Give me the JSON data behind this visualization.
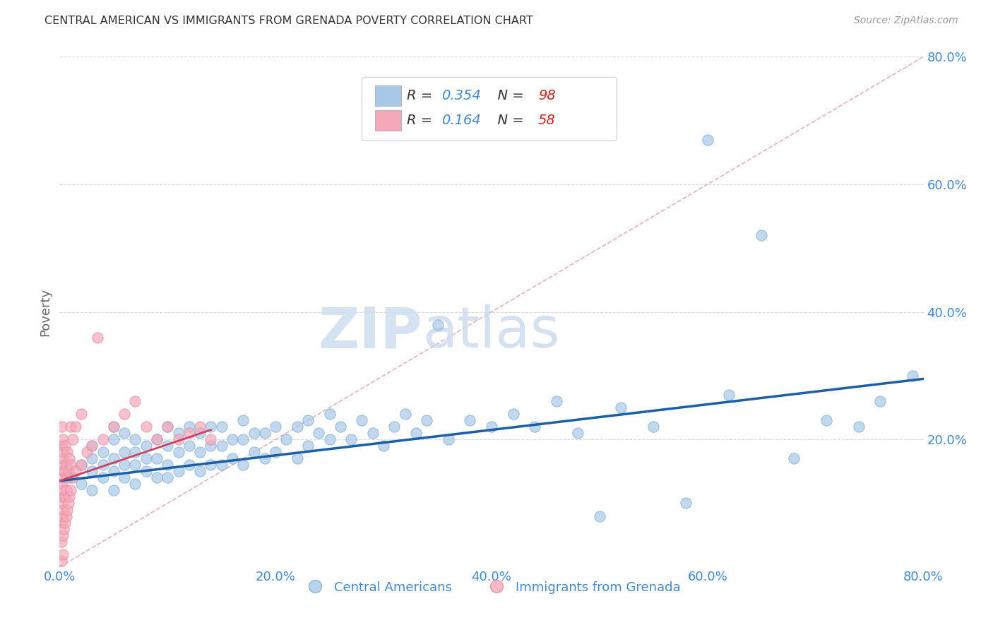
{
  "title": "CENTRAL AMERICAN VS IMMIGRANTS FROM GRENADA POVERTY CORRELATION CHART",
  "source": "Source: ZipAtlas.com",
  "ylabel": "Poverty",
  "xlim": [
    0.0,
    0.8
  ],
  "ylim": [
    0.0,
    0.8
  ],
  "ytick_values": [
    0.2,
    0.4,
    0.6,
    0.8
  ],
  "xtick_values": [
    0.0,
    0.2,
    0.4,
    0.6,
    0.8
  ],
  "legend1_label": "Central Americans",
  "legend2_label": "Immigrants from Grenada",
  "r1": 0.354,
  "n1": 98,
  "r2": 0.164,
  "n2": 58,
  "blue_color": "#a8c8e8",
  "pink_color": "#f4a8ba",
  "blue_scatter_edge": "#7aabcf",
  "pink_scatter_edge": "#e888a0",
  "blue_line_color": "#1a5fa8",
  "pink_line_color": "#d04060",
  "diagonal_color": "#e8b0b8",
  "grid_color": "#d8d8e0",
  "axis_label_color": "#4488cc",
  "n_color": "#cc2222",
  "watermark_color": "#dce8f4",
  "blue_line_x0": 0.0,
  "blue_line_y0": 0.135,
  "blue_line_x1": 0.8,
  "blue_line_y1": 0.295,
  "pink_line_x0": 0.0,
  "pink_line_y0": 0.135,
  "pink_line_x1": 0.14,
  "pink_line_y1": 0.215,
  "blue_scatter_x": [
    0.01,
    0.02,
    0.02,
    0.03,
    0.03,
    0.03,
    0.03,
    0.04,
    0.04,
    0.04,
    0.05,
    0.05,
    0.05,
    0.05,
    0.05,
    0.06,
    0.06,
    0.06,
    0.06,
    0.07,
    0.07,
    0.07,
    0.07,
    0.08,
    0.08,
    0.08,
    0.09,
    0.09,
    0.09,
    0.1,
    0.1,
    0.1,
    0.1,
    0.11,
    0.11,
    0.11,
    0.12,
    0.12,
    0.12,
    0.13,
    0.13,
    0.13,
    0.14,
    0.14,
    0.14,
    0.15,
    0.15,
    0.15,
    0.16,
    0.16,
    0.17,
    0.17,
    0.17,
    0.18,
    0.18,
    0.19,
    0.19,
    0.2,
    0.2,
    0.21,
    0.22,
    0.22,
    0.23,
    0.23,
    0.24,
    0.25,
    0.25,
    0.26,
    0.27,
    0.28,
    0.29,
    0.3,
    0.31,
    0.32,
    0.33,
    0.34,
    0.35,
    0.36,
    0.38,
    0.4,
    0.42,
    0.44,
    0.46,
    0.48,
    0.5,
    0.52,
    0.55,
    0.58,
    0.6,
    0.62,
    0.65,
    0.68,
    0.71,
    0.74,
    0.76,
    0.79
  ],
  "blue_scatter_y": [
    0.14,
    0.13,
    0.16,
    0.12,
    0.15,
    0.17,
    0.19,
    0.14,
    0.16,
    0.18,
    0.12,
    0.15,
    0.17,
    0.2,
    0.22,
    0.14,
    0.16,
    0.18,
    0.21,
    0.13,
    0.16,
    0.18,
    0.2,
    0.15,
    0.17,
    0.19,
    0.14,
    0.17,
    0.2,
    0.14,
    0.16,
    0.19,
    0.22,
    0.15,
    0.18,
    0.21,
    0.16,
    0.19,
    0.22,
    0.15,
    0.18,
    0.21,
    0.16,
    0.19,
    0.22,
    0.16,
    0.19,
    0.22,
    0.17,
    0.2,
    0.16,
    0.2,
    0.23,
    0.18,
    0.21,
    0.17,
    0.21,
    0.18,
    0.22,
    0.2,
    0.17,
    0.22,
    0.19,
    0.23,
    0.21,
    0.2,
    0.24,
    0.22,
    0.2,
    0.23,
    0.21,
    0.19,
    0.22,
    0.24,
    0.21,
    0.23,
    0.38,
    0.2,
    0.23,
    0.22,
    0.24,
    0.22,
    0.26,
    0.21,
    0.08,
    0.25,
    0.22,
    0.1,
    0.67,
    0.27,
    0.52,
    0.17,
    0.23,
    0.22,
    0.26,
    0.3
  ],
  "pink_scatter_x": [
    0.002,
    0.002,
    0.002,
    0.002,
    0.002,
    0.002,
    0.002,
    0.002,
    0.003,
    0.003,
    0.003,
    0.003,
    0.003,
    0.003,
    0.003,
    0.004,
    0.004,
    0.004,
    0.004,
    0.004,
    0.005,
    0.005,
    0.005,
    0.005,
    0.006,
    0.006,
    0.006,
    0.007,
    0.007,
    0.007,
    0.008,
    0.008,
    0.009,
    0.009,
    0.01,
    0.01,
    0.01,
    0.012,
    0.012,
    0.015,
    0.015,
    0.02,
    0.02,
    0.025,
    0.03,
    0.035,
    0.04,
    0.05,
    0.06,
    0.07,
    0.08,
    0.09,
    0.1,
    0.11,
    0.12,
    0.13,
    0.14
  ],
  "pink_scatter_y": [
    0.04,
    0.07,
    0.1,
    0.13,
    0.16,
    0.19,
    0.22,
    0.01,
    0.05,
    0.08,
    0.11,
    0.14,
    0.17,
    0.2,
    0.02,
    0.06,
    0.09,
    0.12,
    0.15,
    0.18,
    0.07,
    0.11,
    0.15,
    0.19,
    0.08,
    0.12,
    0.16,
    0.09,
    0.14,
    0.18,
    0.1,
    0.15,
    0.11,
    0.17,
    0.12,
    0.16,
    0.22,
    0.14,
    0.2,
    0.15,
    0.22,
    0.16,
    0.24,
    0.18,
    0.19,
    0.36,
    0.2,
    0.22,
    0.24,
    0.26,
    0.22,
    0.2,
    0.22,
    0.2,
    0.21,
    0.22,
    0.2
  ]
}
